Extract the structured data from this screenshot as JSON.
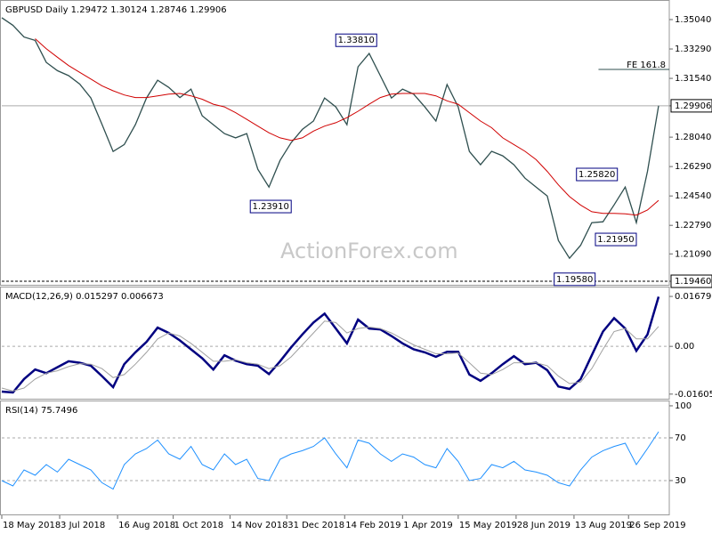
{
  "chart_data": [
    {
      "type": "line",
      "title": "GBPUSD Daily 1.29472 1.30124 1.28746 1.29906",
      "watermark": "ActionForex.com",
      "xlim": [
        0,
        59
      ],
      "ylim": [
        1.1925,
        1.361
      ],
      "yticks": [
        {
          "value": 1.1946,
          "label": "1.19460"
        },
        {
          "value": 1.2109,
          "label": "1.21090"
        },
        {
          "value": 1.2279,
          "label": "1.22790"
        },
        {
          "value": 1.2454,
          "label": "1.24540"
        },
        {
          "value": 1.2629,
          "label": "1.26290"
        },
        {
          "value": 1.2804,
          "label": "1.28040"
        },
        {
          "value": 1.29906,
          "label": "1.29906"
        },
        {
          "value": 1.3154,
          "label": "1.31540"
        },
        {
          "value": 1.3329,
          "label": "1.33290"
        },
        {
          "value": 1.3504,
          "label": "1.35040"
        }
      ],
      "series": [
        {
          "color": "#2f4f4f",
          "values": [
            1.3515,
            1.347,
            1.34,
            1.338,
            1.3249,
            1.32,
            1.317,
            1.312,
            1.3037,
            1.288,
            1.2719,
            1.276,
            1.2878,
            1.3037,
            1.3143,
            1.31,
            1.304,
            1.309,
            1.2931,
            1.2878,
            1.2825,
            1.28,
            1.2825,
            1.2613,
            1.2507,
            1.2666,
            1.2772,
            1.285,
            1.29,
            1.3037,
            1.2984,
            1.2878,
            1.3223,
            1.3302,
            1.317,
            1.3037,
            1.309,
            1.306,
            1.2984,
            1.29,
            1.3117,
            1.2984,
            1.2719,
            1.264,
            1.272,
            1.2693,
            1.264,
            1.256,
            1.2507,
            1.2454,
            1.2189,
            1.2083,
            1.216,
            1.2295,
            1.23,
            1.2401,
            1.2507,
            1.2295,
            1.26,
            1.2991
          ]
        },
        {
          "color": "#d00000",
          "values": [
            null,
            null,
            null,
            1.339,
            1.333,
            1.328,
            1.323,
            1.319,
            1.315,
            1.311,
            1.308,
            1.3055,
            1.304,
            1.304,
            1.305,
            1.306,
            1.3064,
            1.305,
            1.303,
            1.3,
            1.2984,
            1.295,
            1.291,
            1.287,
            1.283,
            1.28,
            1.2785,
            1.28,
            1.284,
            1.287,
            1.289,
            1.292,
            1.2958,
            1.3,
            1.304,
            1.306,
            1.3064,
            1.3064,
            1.3064,
            1.305,
            1.302,
            1.3,
            1.295,
            1.29,
            1.286,
            1.28,
            1.276,
            1.272,
            1.267,
            1.26,
            1.252,
            1.245,
            1.24,
            1.236,
            1.235,
            1.235,
            1.2348,
            1.234,
            1.237,
            1.2428
          ]
        }
      ],
      "annotations": [
        {
          "x": 30,
          "value": 1.3381,
          "label": "1.33810"
        },
        {
          "x": 26,
          "value": 1.2391,
          "label": "1.23910"
        },
        {
          "x": 55.3,
          "value": 1.2582,
          "label": "1.25820"
        },
        {
          "x": 57,
          "value": 1.2195,
          "label": "1.21950"
        },
        {
          "x": 53.3,
          "value": 1.1958,
          "label": "1.19580"
        },
        {
          "x": 53.6,
          "value": 1.3207,
          "label": "FE 161.8"
        }
      ]
    },
    {
      "type": "line",
      "title": "MACD(12,26,9) 0.015297 0.006673",
      "xlim": [
        0,
        59
      ],
      "ylim": [
        -0.0176,
        0.0195
      ],
      "yticks": [
        -0.01605,
        {
          "value": 0,
          "label": "0.00"
        },
        0.01679
      ],
      "series": [
        {
          "color": "#000080",
          "values": [
            -0.0152,
            -0.0155,
            -0.011,
            -0.0078,
            -0.009,
            -0.007,
            -0.005,
            -0.0055,
            -0.0065,
            -0.01,
            -0.0137,
            -0.006,
            -0.002,
            0.0015,
            0.0063,
            0.0045,
            0.002,
            -0.001,
            -0.004,
            -0.0078,
            -0.003,
            -0.0048,
            -0.006,
            -0.0065,
            -0.0093,
            -0.005,
            -0.0003,
            0.004,
            0.008,
            0.011,
            0.006,
            0.001,
            0.009,
            0.006,
            0.0057,
            0.0035,
            0.001,
            -0.001,
            -0.002,
            -0.0035,
            -0.0018,
            -0.0018,
            -0.0095,
            -0.0116,
            -0.009,
            -0.006,
            -0.0033,
            -0.006,
            -0.0055,
            -0.008,
            -0.0135,
            -0.0143,
            -0.011,
            -0.003,
            0.005,
            0.0095,
            0.006,
            -0.0015,
            0.004,
            0.0167
          ]
        },
        {
          "color": "#a0a0a0",
          "values": [
            -0.014,
            -0.015,
            -0.014,
            -0.011,
            -0.009,
            -0.0082,
            -0.0068,
            -0.0058,
            -0.006,
            -0.0075,
            -0.0105,
            -0.0095,
            -0.006,
            -0.002,
            0.0025,
            0.0045,
            0.0035,
            0.001,
            -0.002,
            -0.005,
            -0.005,
            -0.0045,
            -0.0055,
            -0.006,
            -0.0075,
            -0.0065,
            -0.0035,
            0.0005,
            0.0045,
            0.0085,
            0.008,
            0.0045,
            0.006,
            0.0065,
            0.006,
            0.0045,
            0.0025,
            0.0005,
            -0.001,
            -0.0025,
            -0.0025,
            -0.0022,
            -0.0055,
            -0.009,
            -0.0095,
            -0.0078,
            -0.0055,
            -0.0055,
            -0.0055,
            -0.0065,
            -0.01,
            -0.0125,
            -0.012,
            -0.0075,
            -0.001,
            0.005,
            0.006,
            0.0025,
            0.0025,
            0.0067
          ]
        }
      ]
    },
    {
      "type": "line",
      "title": "RSI(14) 75.7496",
      "xlim": [
        0,
        59
      ],
      "ylim": [
        -1.7,
        103.3
      ],
      "yticks": [
        30,
        70,
        100
      ],
      "series": [
        {
          "color": "#1e90ff",
          "values": [
            30,
            25,
            40,
            35,
            45,
            38,
            50,
            45,
            40,
            28,
            22,
            45,
            55,
            60,
            68,
            55,
            50,
            62,
            45,
            40,
            55,
            45,
            50,
            32,
            30,
            50,
            55,
            58,
            62,
            70,
            55,
            42,
            68,
            65,
            55,
            48,
            55,
            52,
            45,
            42,
            60,
            48,
            30,
            32,
            45,
            42,
            48,
            40,
            38,
            35,
            28,
            25,
            40,
            52,
            58,
            62,
            65,
            45,
            60,
            75.7
          ]
        }
      ],
      "xticks": [
        {
          "value": 0,
          "label": "18 May 2018"
        },
        {
          "value": 5.2,
          "label": "3 Jul 2018"
        },
        {
          "value": 10.4,
          "label": "16 Aug 2018"
        },
        {
          "value": 15.4,
          "label": "1 Oct 2018"
        },
        {
          "value": 20.5,
          "label": "14 Nov 2018"
        },
        {
          "value": 25.6,
          "label": "31 Dec 2018"
        },
        {
          "value": 30.8,
          "label": "14 Feb 2019"
        },
        {
          "value": 36,
          "label": "1 Apr 2019"
        },
        {
          "value": 41,
          "label": "15 May 2019"
        },
        {
          "value": 46.2,
          "label": "28 Jun 2019"
        },
        {
          "value": 51.4,
          "label": "13 Aug 2019"
        },
        {
          "value": 56.3,
          "label": "26 Sep 2019"
        }
      ]
    }
  ]
}
